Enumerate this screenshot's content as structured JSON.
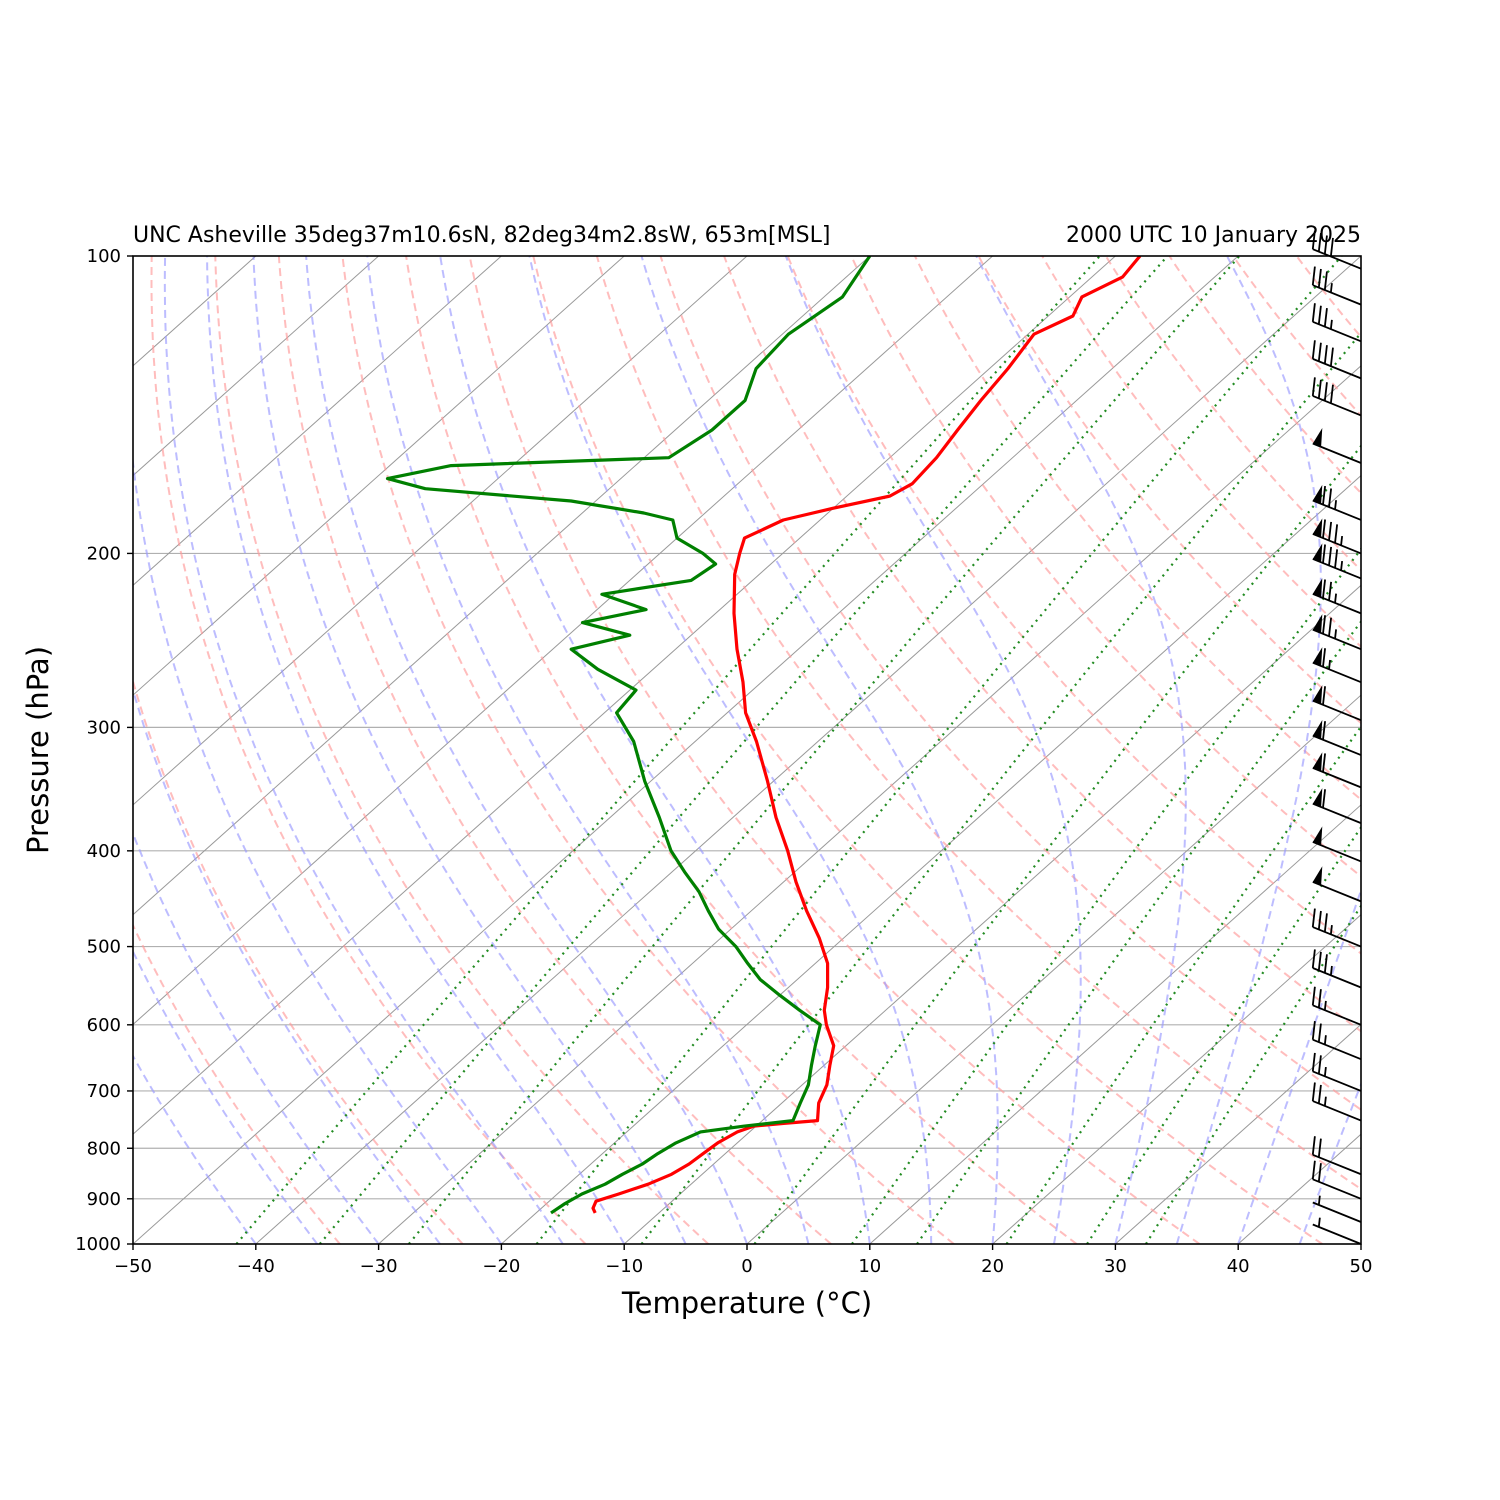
{
  "chart_data": {
    "type": "line",
    "title_left": "UNC Asheville 35deg37m10.6sN, 82deg34m2.8sW, 653m[MSL]",
    "title_right": "2000 UTC 10 January 2025",
    "xlabel": "Temperature (°C)",
    "ylabel": "Pressure (hPa)",
    "xlim": [
      -50,
      50
    ],
    "ylim": [
      1000,
      100
    ],
    "y_scale": "log",
    "skew": true,
    "grid": true,
    "x_ticks": [
      -50,
      -40,
      -30,
      -20,
      -10,
      0,
      10,
      20,
      30,
      40,
      50
    ],
    "x_tick_labels": [
      "−50",
      "−40",
      "−30",
      "−20",
      "−10",
      "0",
      "10",
      "20",
      "30",
      "40",
      "50"
    ],
    "y_ticks": [
      1000,
      900,
      800,
      700,
      600,
      500,
      400,
      300,
      200,
      100
    ],
    "y_tick_labels": [
      "1000",
      "900",
      "800",
      "700",
      "600",
      "500",
      "400",
      "300",
      "200",
      "100"
    ],
    "colors": {
      "temperature": "#ff0000",
      "dewpoint": "#008000",
      "dry_adiabat": "#ff9999",
      "moist_adiabat": "#9999ff",
      "mixing_ratio": "#228b22",
      "isotherm": "#999999",
      "wind_barb": "#000000"
    },
    "series": [
      {
        "role": "temperature",
        "p": [
          930,
          920,
          905,
          890,
          870,
          850,
          830,
          810,
          790,
          770,
          760,
          755,
          750,
          720,
          690,
          660,
          630,
          600,
          580,
          550,
          520,
          490,
          460,
          430,
          400,
          370,
          340,
          310,
          290,
          270,
          250,
          230,
          210,
          200,
          193,
          185,
          180,
          175,
          170,
          160,
          150,
          140,
          130,
          120,
          115,
          110,
          105,
          100
        ],
        "t": [
          -15.2,
          -15.8,
          -16.2,
          -15.0,
          -13.5,
          -12.5,
          -12.0,
          -11.8,
          -11.6,
          -11.0,
          -10.2,
          -8.0,
          -5.5,
          -7.0,
          -8.0,
          -9.5,
          -11.0,
          -13.5,
          -15.0,
          -16.8,
          -19.0,
          -22.0,
          -25.5,
          -29.0,
          -32.5,
          -36.5,
          -40.5,
          -45.0,
          -48.5,
          -51.5,
          -55.0,
          -58.5,
          -62.0,
          -63.5,
          -64.5,
          -63.0,
          -60.0,
          -56.5,
          -55.8,
          -56.2,
          -57.0,
          -57.8,
          -58.5,
          -59.5,
          -58.0,
          -59.0,
          -57.5,
          -58.0
        ]
      },
      {
        "role": "dewpoint",
        "p": [
          930,
          910,
          890,
          870,
          850,
          830,
          810,
          790,
          770,
          760,
          750,
          720,
          690,
          660,
          630,
          600,
          580,
          560,
          540,
          520,
          500,
          480,
          460,
          440,
          420,
          400,
          370,
          340,
          310,
          290,
          275,
          262,
          250,
          242,
          235,
          228,
          220,
          213,
          205,
          200,
          193,
          185,
          182,
          177,
          172,
          168,
          163,
          160,
          150,
          140,
          130,
          120,
          110,
          100
        ],
        "t": [
          -18.8,
          -18.5,
          -18.0,
          -17.0,
          -16.5,
          -15.8,
          -15.5,
          -15.0,
          -14.0,
          -11.0,
          -7.5,
          -8.5,
          -9.5,
          -11.0,
          -12.5,
          -14.0,
          -17.0,
          -20.0,
          -23.0,
          -25.5,
          -28.0,
          -31.0,
          -33.5,
          -36.0,
          -39.0,
          -42.0,
          -46.0,
          -50.5,
          -55.0,
          -59.0,
          -59.5,
          -64.5,
          -68.5,
          -65.0,
          -70.0,
          -66.0,
          -71.0,
          -65.0,
          -64.5,
          -66.5,
          -70.0,
          -72.0,
          -75.0,
          -82.0,
          -95.0,
          -99.0,
          -95.0,
          -78.0,
          -77.0,
          -77.0,
          -79.0,
          -79.5,
          -78.5,
          -80.0
        ]
      }
    ],
    "wind_barbs": [
      {
        "p": 1000,
        "speed_kt": 5
      },
      {
        "p": 950,
        "speed_kt": 5
      },
      {
        "p": 900,
        "speed_kt": 20
      },
      {
        "p": 850,
        "speed_kt": 20
      },
      {
        "p": 750,
        "speed_kt": 25
      },
      {
        "p": 700,
        "speed_kt": 25
      },
      {
        "p": 650,
        "speed_kt": 25
      },
      {
        "p": 600,
        "speed_kt": 25
      },
      {
        "p": 550,
        "speed_kt": 35
      },
      {
        "p": 500,
        "speed_kt": 35
      },
      {
        "p": 450,
        "speed_kt": 50
      },
      {
        "p": 410,
        "speed_kt": 50
      },
      {
        "p": 375,
        "speed_kt": 60
      },
      {
        "p": 345,
        "speed_kt": 60
      },
      {
        "p": 320,
        "speed_kt": 60
      },
      {
        "p": 295,
        "speed_kt": 60
      },
      {
        "p": 270,
        "speed_kt": 65
      },
      {
        "p": 250,
        "speed_kt": 75
      },
      {
        "p": 230,
        "speed_kt": 75
      },
      {
        "p": 212,
        "speed_kt": 85
      },
      {
        "p": 200,
        "speed_kt": 85
      },
      {
        "p": 185,
        "speed_kt": 75
      },
      {
        "p": 162,
        "speed_kt": 50
      },
      {
        "p": 145,
        "speed_kt": 40
      },
      {
        "p": 133,
        "speed_kt": 40
      },
      {
        "p": 122,
        "speed_kt": 35
      },
      {
        "p": 112,
        "speed_kt": 35
      },
      {
        "p": 103,
        "speed_kt": 40
      }
    ]
  }
}
